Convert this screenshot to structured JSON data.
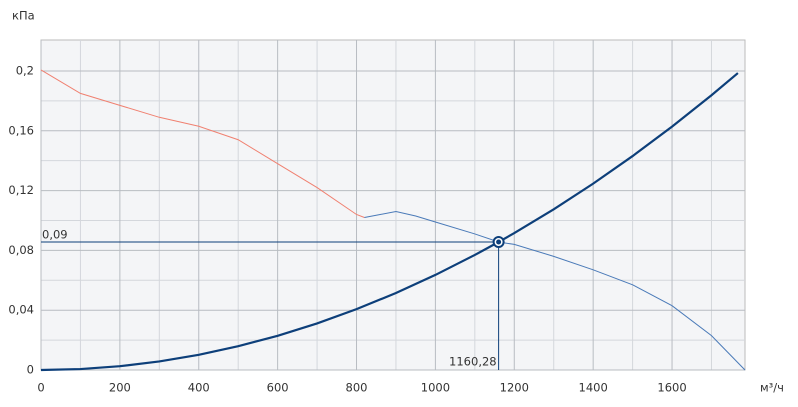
{
  "chart_data": {
    "type": "line",
    "y_label": "кПа",
    "x_label": "м³/ч",
    "xlim": [
      0,
      1785
    ],
    "ylim": [
      0,
      0.2207
    ],
    "xticks": [
      0,
      200,
      400,
      600,
      800,
      1000,
      1200,
      1400,
      1600
    ],
    "xminor_ticks": [
      100,
      300,
      500,
      700,
      900,
      1100,
      1300,
      1500,
      1700
    ],
    "yticks": [
      0,
      {
        "value": 0.04,
        "label": "0,04"
      },
      {
        "value": 0.08,
        "label": "0,08"
      },
      {
        "value": 0.12,
        "label": "0,12"
      },
      {
        "value": 0.16,
        "label": "0,16"
      },
      {
        "value": 0.2,
        "label": "0,2"
      }
    ],
    "yminor_ticks": [
      0.02,
      0.06,
      0.1,
      0.14,
      0.18
    ],
    "grid": true,
    "series": [
      {
        "color": "#f08070",
        "width": 1,
        "x": [
          0,
          100,
          200,
          300,
          400,
          500,
          600,
          700,
          800,
          820
        ],
        "values": [
          0.2007,
          0.185,
          0.177,
          0.169,
          0.163,
          0.154,
          0.138,
          0.122,
          0.104,
          0.102
        ]
      },
      {
        "color": "#4a7ab8",
        "width": 1,
        "x": [
          820,
          860,
          900,
          950,
          1000,
          1100,
          1160.28,
          1200,
          1300,
          1400,
          1500,
          1600,
          1700,
          1785
        ],
        "values": [
          0.102,
          0.104,
          0.106,
          0.103,
          0.099,
          0.091,
          0.0856,
          0.084,
          0.076,
          0.067,
          0.057,
          0.043,
          0.023,
          0
        ]
      },
      {
        "color": "#0d3f7a",
        "width": 2.2,
        "x": [
          0,
          100,
          200,
          300,
          400,
          500,
          600,
          700,
          800,
          900,
          1000,
          1100,
          1160.28,
          1200,
          1300,
          1400,
          1500,
          1600,
          1700,
          1767
        ],
        "values": [
          0,
          0.00064,
          0.00254,
          0.00572,
          0.01017,
          0.0159,
          0.02289,
          0.03115,
          0.04069,
          0.0515,
          0.06358,
          0.07694,
          0.0856,
          0.09156,
          0.10746,
          0.12463,
          0.14307,
          0.16278,
          0.18376,
          0.1986
        ]
      }
    ],
    "operating_point": {
      "x": 1160.28,
      "x_label": "1160,28",
      "y": 0.0856,
      "y_label": "0,09",
      "color": "#0d3f7a"
    }
  }
}
